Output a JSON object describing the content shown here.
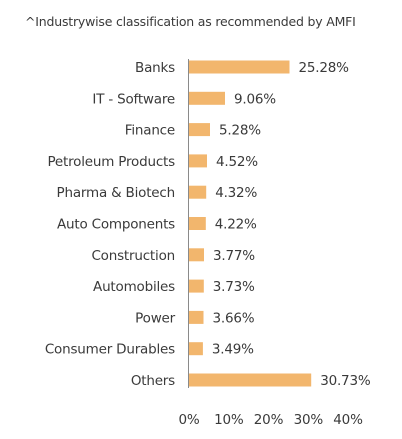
{
  "note": "^Industrywise classification as recommended by AMFI",
  "chart_data": {
    "type": "bar",
    "orientation": "horizontal",
    "categories": [
      "Banks",
      "IT - Software",
      "Finance",
      "Petroleum Products",
      "Pharma & Biotech",
      "Auto Components",
      "Construction",
      "Automobiles",
      "Power",
      "Consumer Durables",
      "Others"
    ],
    "values": [
      25.28,
      9.06,
      5.28,
      4.52,
      4.32,
      4.22,
      3.77,
      3.73,
      3.66,
      3.49,
      30.73
    ],
    "value_labels": [
      "25.28%",
      "9.06%",
      "5.28%",
      "4.52%",
      "4.32%",
      "4.22%",
      "3.77%",
      "3.73%",
      "3.66%",
      "3.49%",
      "30.73%"
    ],
    "xlim": [
      0,
      40
    ],
    "xticks": [
      0,
      10,
      20,
      30,
      40
    ],
    "xtick_labels": [
      "0%",
      "10%",
      "20%",
      "30%",
      "40%"
    ],
    "bar_color": "#F2B66D",
    "grid": false,
    "title": "",
    "xlabel": "",
    "ylabel": ""
  }
}
